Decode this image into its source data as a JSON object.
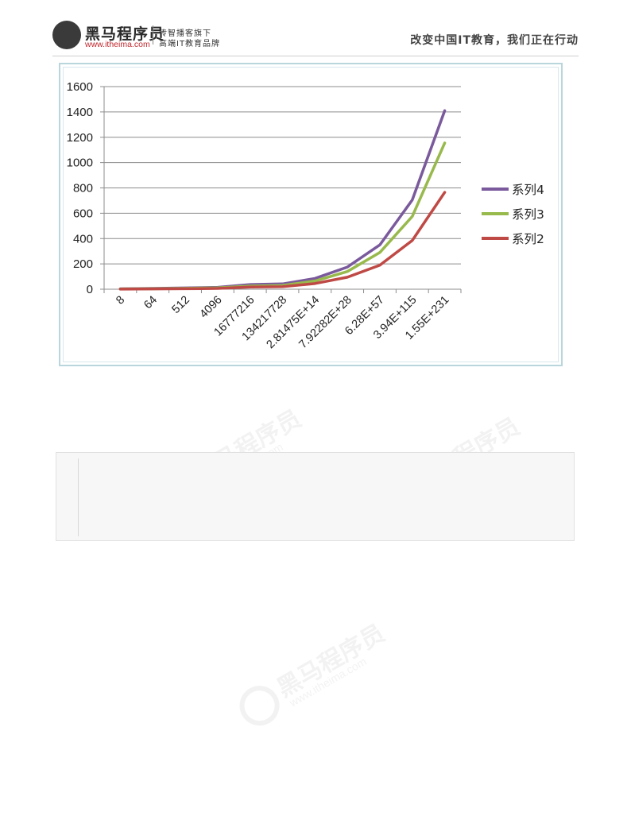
{
  "header": {
    "brand_name": "黑马程序员",
    "brand_url": "www.itheima.com",
    "slogan_line1": "传智播客旗下",
    "slogan_line2": "高端IT教育品牌",
    "right_text": "改变中国IT教育，我们正在行动"
  },
  "watermark": {
    "text": "黑马程序员",
    "url": "www.itheima.com"
  },
  "chart_data": {
    "type": "line",
    "categories": [
      "8",
      "64",
      "512",
      "4096",
      "16777216",
      "134217728",
      "2.81475E+14",
      "7.92282E+28",
      "6.28E+57",
      "3.94E+115",
      "1.55E+231"
    ],
    "ylim": [
      0,
      1600
    ],
    "yticks": [
      0,
      200,
      400,
      600,
      800,
      1000,
      1200,
      1400,
      1600
    ],
    "grid": true,
    "legend_position": "right",
    "series": [
      {
        "name": "系列4",
        "color": "#7a5a9c",
        "values": [
          3,
          6,
          10,
          15,
          37,
          42,
          85,
          175,
          350,
          705,
          1410
        ]
      },
      {
        "name": "系列3",
        "color": "#98b94c",
        "values": [
          2,
          4,
          7,
          11,
          25,
          30,
          65,
          140,
          290,
          575,
          1155
        ]
      },
      {
        "name": "系列2",
        "color": "#bf4945",
        "values": [
          1,
          2,
          4,
          6,
          17,
          20,
          45,
          95,
          190,
          385,
          765
        ]
      }
    ]
  }
}
